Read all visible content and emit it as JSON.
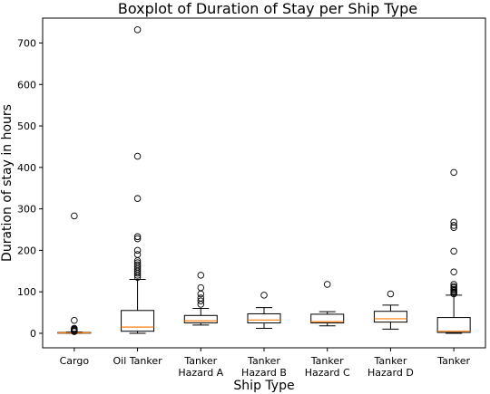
{
  "chart_data": {
    "type": "boxplot",
    "title": "Boxplot of Duration of Stay per Ship Type",
    "xlabel": "Ship Type",
    "ylabel": "Duration of stay in hours",
    "ylim": [
      -35,
      760
    ],
    "yticks": [
      0,
      100,
      200,
      300,
      400,
      500,
      600,
      700
    ],
    "grid": false,
    "categories": [
      [
        "Cargo"
      ],
      [
        "Oil Tanker"
      ],
      [
        "Tanker",
        "Hazard A"
      ],
      [
        "Tanker",
        "Hazard B"
      ],
      [
        "Tanker",
        "Hazard C"
      ],
      [
        "Tanker",
        "Hazard D"
      ],
      [
        "Tanker"
      ]
    ],
    "boxes": [
      {
        "whisker_low": 0,
        "q1": 0.5,
        "median": 1,
        "q3": 2,
        "whisker_high": 3,
        "outliers": [
          4,
          6,
          8,
          10,
          12,
          31,
          283
        ]
      },
      {
        "whisker_low": 0,
        "q1": 5,
        "median": 15,
        "q3": 55,
        "whisker_high": 130,
        "outliers": [
          135,
          140,
          145,
          150,
          155,
          160,
          165,
          170,
          175,
          190,
          200,
          228,
          233,
          325,
          427,
          732
        ]
      },
      {
        "whisker_low": 20,
        "q1": 25,
        "median": 30,
        "q3": 43,
        "whisker_high": 60,
        "outliers": [
          70,
          78,
          85,
          95,
          110,
          140
        ]
      },
      {
        "whisker_low": 12,
        "q1": 25,
        "median": 32,
        "q3": 47,
        "whisker_high": 62,
        "outliers": [
          92
        ]
      },
      {
        "whisker_low": 18,
        "q1": 25,
        "median": 28,
        "q3": 46,
        "whisker_high": 52,
        "outliers": [
          118
        ]
      },
      {
        "whisker_low": 10,
        "q1": 27,
        "median": 35,
        "q3": 53,
        "whisker_high": 68,
        "outliers": [
          95
        ]
      },
      {
        "whisker_low": 0,
        "q1": 2,
        "median": 5,
        "q3": 38,
        "whisker_high": 92,
        "outliers": [
          95,
          98,
          100,
          103,
          106,
          110,
          113,
          118,
          148,
          198,
          255,
          260,
          268,
          388
        ]
      }
    ],
    "colors": {
      "box": "#000000",
      "median": "#ff7f0e",
      "outlier": "#000000"
    }
  }
}
